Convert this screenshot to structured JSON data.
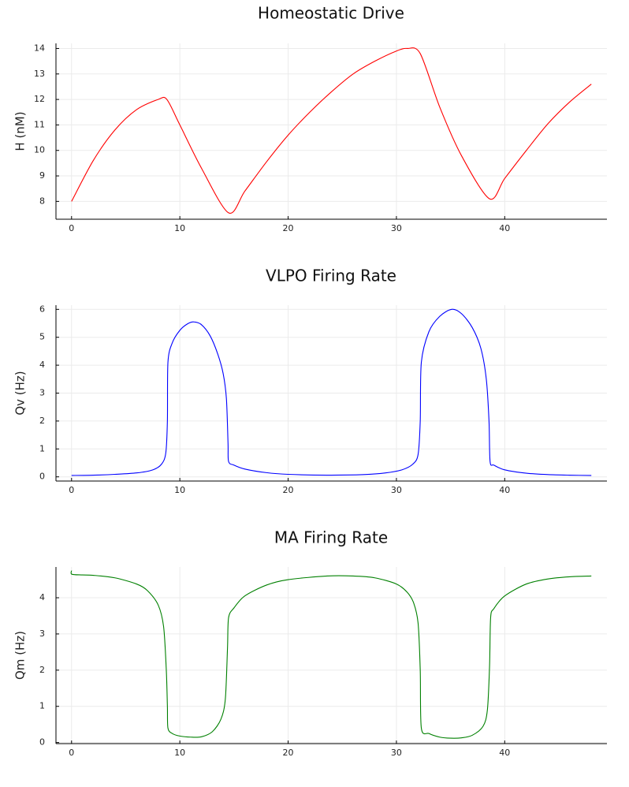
{
  "chart_data": [
    {
      "type": "line",
      "title": "Homeostatic Drive",
      "xlabel": "",
      "ylabel": "H (nM)",
      "xlim": [
        -1.44,
        49.44
      ],
      "ylim": [
        7.3,
        14.2
      ],
      "xticks": [
        0,
        10,
        20,
        30,
        40
      ],
      "yticks": [
        8,
        9,
        10,
        11,
        12,
        13,
        14
      ],
      "grid": true,
      "color": "#ff0000",
      "series": [
        {
          "name": "H",
          "x": [
            0,
            2,
            4,
            6,
            8,
            8.8,
            10,
            12,
            14.5,
            16,
            18,
            20,
            22,
            24,
            26,
            28,
            30,
            31,
            32.2,
            34,
            36,
            38.6,
            40,
            42,
            44,
            46,
            48
          ],
          "y": [
            8.0,
            9.6,
            10.8,
            11.6,
            12.0,
            12.0,
            11.0,
            9.3,
            7.55,
            8.4,
            9.55,
            10.6,
            11.5,
            12.3,
            13.0,
            13.5,
            13.9,
            14.0,
            13.8,
            11.7,
            9.8,
            8.1,
            8.9,
            10.0,
            11.05,
            11.9,
            12.6
          ]
        }
      ]
    },
    {
      "type": "line",
      "title": "VLPO Firing Rate",
      "xlabel": "",
      "ylabel": "Qv (Hz)",
      "xlim": [
        -1.44,
        49.44
      ],
      "ylim": [
        -0.15,
        6.15
      ],
      "xticks": [
        0,
        10,
        20,
        30,
        40
      ],
      "yticks": [
        0,
        1,
        2,
        3,
        4,
        5,
        6
      ],
      "grid": true,
      "color": "#0000ff",
      "series": [
        {
          "name": "Qv",
          "x": [
            0,
            2,
            4,
            6,
            7.5,
            8.3,
            8.7,
            8.85,
            8.9,
            9.3,
            10,
            10.7,
            11.3,
            12,
            12.8,
            13.5,
            14,
            14.3,
            14.45,
            14.5,
            15,
            16,
            18,
            20,
            23.6,
            27,
            29,
            30.5,
            31.5,
            32,
            32.2,
            32.3,
            33,
            34,
            35.1,
            36,
            37,
            37.8,
            38.3,
            38.55,
            38.65,
            39,
            40,
            42,
            44,
            46,
            48
          ],
          "y": [
            0.05,
            0.06,
            0.09,
            0.14,
            0.25,
            0.45,
            0.85,
            2.0,
            4.1,
            4.8,
            5.25,
            5.48,
            5.55,
            5.45,
            5.05,
            4.4,
            3.7,
            2.8,
            1.2,
            0.55,
            0.42,
            0.28,
            0.15,
            0.09,
            0.06,
            0.08,
            0.14,
            0.25,
            0.45,
            0.8,
            2.0,
            4.1,
            5.2,
            5.75,
            6.0,
            5.85,
            5.35,
            4.6,
            3.5,
            2.0,
            0.55,
            0.42,
            0.25,
            0.13,
            0.08,
            0.06,
            0.05
          ]
        }
      ]
    },
    {
      "type": "line",
      "title": "MA Firing Rate",
      "xlabel": "",
      "ylabel": "Qm (Hz)",
      "xlim": [
        -1.44,
        49.44
      ],
      "ylim": [
        -0.03,
        4.85
      ],
      "xticks": [
        0,
        10,
        20,
        30,
        40
      ],
      "yticks": [
        0,
        1,
        2,
        3,
        4
      ],
      "grid": true,
      "color": "#008000",
      "series": [
        {
          "name": "Qm",
          "x": [
            0,
            0.02,
            1,
            2,
            4,
            6,
            7,
            8,
            8.5,
            8.75,
            8.85,
            8.9,
            9.3,
            10,
            11,
            12,
            13,
            13.8,
            14.2,
            14.4,
            14.5,
            15,
            16,
            18,
            20,
            23.6,
            26,
            28,
            30,
            31,
            31.6,
            32,
            32.2,
            32.3,
            33,
            34,
            35,
            36,
            37,
            38,
            38.4,
            38.6,
            38.7,
            39,
            40,
            42,
            44,
            46,
            48
          ],
          "y": [
            4.75,
            4.65,
            4.63,
            4.62,
            4.55,
            4.38,
            4.2,
            3.8,
            3.2,
            2.0,
            1.0,
            0.4,
            0.25,
            0.18,
            0.15,
            0.16,
            0.3,
            0.65,
            1.2,
            2.6,
            3.45,
            3.72,
            4.05,
            4.35,
            4.5,
            4.6,
            4.6,
            4.55,
            4.38,
            4.15,
            3.85,
            3.3,
            2.0,
            0.4,
            0.25,
            0.15,
            0.12,
            0.13,
            0.2,
            0.45,
            0.9,
            2.1,
            3.45,
            3.7,
            4.05,
            4.38,
            4.52,
            4.58,
            4.6
          ]
        }
      ]
    }
  ]
}
